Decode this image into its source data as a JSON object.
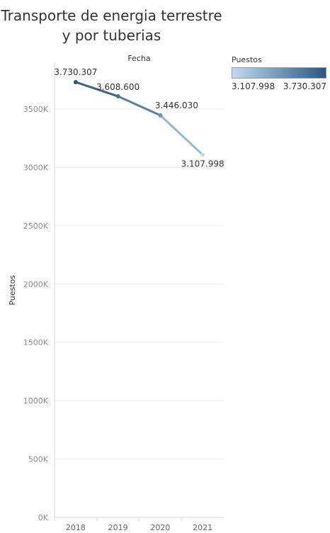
{
  "title_line1": "Transporte de energia terrestre",
  "title_line2": "y por tuberias",
  "legend": {
    "title": "Puestos",
    "min_label": "3.107.998",
    "max_label": "3.730.307",
    "color_low": "#bfdcef",
    "color_high": "#2a5783"
  },
  "chart_data": {
    "type": "line",
    "column_header": "Fecha",
    "ylabel": "Puestos",
    "xlabel": "",
    "categories": [
      "2018",
      "2019",
      "2020",
      "2021"
    ],
    "series": [
      {
        "name": "Puestos",
        "values": [
          3730307,
          3608600,
          3446030,
          3107998
        ],
        "labels": [
          "3.730.307",
          "3.608.600",
          "3.446.030",
          "3.107.998"
        ]
      }
    ],
    "ylim": [
      0,
      3900000
    ],
    "yticks": [
      0,
      500000,
      1000000,
      1500000,
      2000000,
      2500000,
      3000000,
      3500000
    ],
    "ytick_labels": [
      "0K",
      "500K",
      "1000K",
      "1500K",
      "2000K",
      "2500K",
      "3000K",
      "3500K"
    ],
    "grid": true,
    "color_by_value": true
  }
}
